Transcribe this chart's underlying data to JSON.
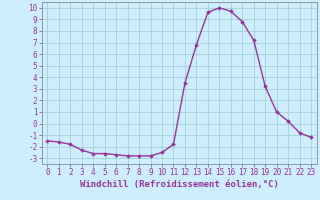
{
  "x": [
    0,
    1,
    2,
    3,
    4,
    5,
    6,
    7,
    8,
    9,
    10,
    11,
    12,
    13,
    14,
    15,
    16,
    17,
    18,
    19,
    20,
    21,
    22,
    23
  ],
  "y": [
    -1.5,
    -1.6,
    -1.8,
    -2.3,
    -2.6,
    -2.6,
    -2.7,
    -2.8,
    -2.8,
    -2.8,
    -2.5,
    -1.8,
    3.5,
    6.8,
    9.6,
    10.0,
    9.7,
    8.8,
    7.2,
    3.2,
    1.0,
    0.2,
    -0.8,
    -1.2
  ],
  "line_color": "#993399",
  "marker": "D",
  "markersize": 1.8,
  "linewidth": 1.0,
  "bg_color": "#cceeff",
  "grid_color": "#99cccc",
  "xlabel": "Windchill (Refroidissement éolien,°C)",
  "xlabel_fontsize": 6.5,
  "ylabel_ticks": [
    -3,
    -2,
    -1,
    0,
    1,
    2,
    3,
    4,
    5,
    6,
    7,
    8,
    9,
    10
  ],
  "xlim": [
    -0.5,
    23.5
  ],
  "ylim": [
    -3.5,
    10.5
  ],
  "tick_fontsize": 5.5
}
